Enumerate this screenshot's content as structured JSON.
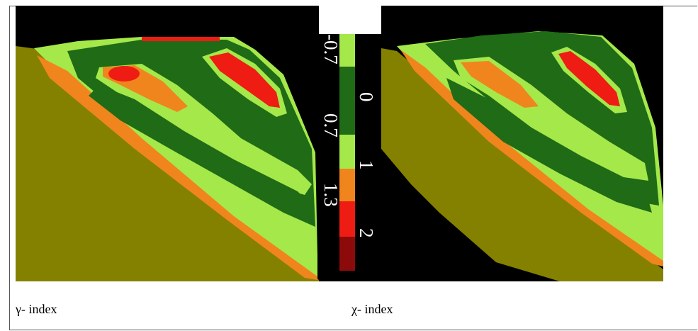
{
  "captions": {
    "left": "γ- index",
    "right": "χ- index"
  },
  "colorbar": {
    "tick_labels": [
      "-0.7",
      "0",
      "0.7",
      "1",
      "1.3",
      "2"
    ],
    "bins": [
      {
        "label": "-0.7 to 0",
        "color": "#a5e84a"
      },
      {
        "label": "0 to 0.7",
        "color": "#1f6b16"
      },
      {
        "label": "0.7 to 1",
        "color": "#a5e84a"
      },
      {
        "label": "1 to 1.3",
        "color": "#f0851e"
      },
      {
        "label": "1.3 to 2",
        "color": "#ee1c12"
      },
      {
        "label": "> 2",
        "color": "#8c0a0a"
      }
    ]
  },
  "colors": {
    "background_region": "#000000",
    "body_region": "#858100",
    "dark_green": "#1f6b16",
    "light_green": "#a5e84a",
    "orange": "#f0851e",
    "red": "#ee1c12",
    "dark_red": "#8c0a0a"
  }
}
